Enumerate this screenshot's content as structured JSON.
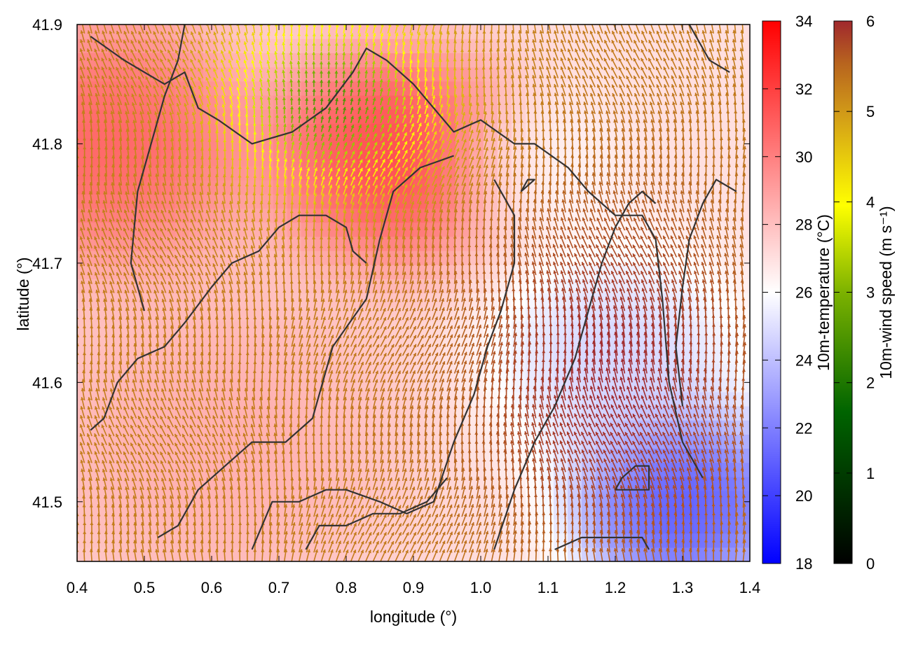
{
  "chart_data": {
    "type": "heatmap",
    "title": "",
    "xlabel": "longitude (°)",
    "ylabel": "latitude (°)",
    "xlim": [
      0.4,
      1.4
    ],
    "ylim": [
      41.45,
      41.9
    ],
    "xticks": [
      0.4,
      0.5,
      0.6,
      0.7,
      0.8,
      0.9,
      1.0,
      1.1,
      1.2,
      1.3,
      1.4
    ],
    "yticks": [
      41.5,
      41.6,
      41.7,
      41.8,
      41.9
    ],
    "xtick_labels": [
      "0.4",
      "0.5",
      "0.6",
      "0.7",
      "0.8",
      "0.9",
      "1.0",
      "1.1",
      "1.2",
      "1.3",
      "1.4"
    ],
    "ytick_labels": [
      "41.5",
      "41.6",
      "41.7",
      "41.8",
      "41.9"
    ],
    "grid": false,
    "temperature_colorbar": {
      "label": "10m-temperature (°C)",
      "range": [
        18,
        34
      ],
      "ticks": [
        18,
        20,
        22,
        24,
        26,
        28,
        30,
        32,
        34
      ],
      "tick_labels": [
        "18",
        "20",
        "22",
        "24",
        "26",
        "28",
        "30",
        "32",
        "34"
      ],
      "colors": [
        "#0000ff",
        "#ffffff",
        "#ff0000"
      ]
    },
    "wind_colorbar": {
      "label": "10m-wind speed (m s⁻¹)",
      "range": [
        0,
        6
      ],
      "ticks": [
        0,
        1,
        2,
        3,
        4,
        5,
        6
      ],
      "tick_labels": [
        "0",
        "1",
        "2",
        "3",
        "4",
        "5",
        "6"
      ],
      "colors": [
        "#000000",
        "#006400",
        "#7cb200",
        "#ffff00",
        "#d4a017",
        "#b8651e",
        "#a0282d"
      ]
    },
    "temperature_field_centers": [
      {
        "lon": 0.45,
        "lat": 41.8,
        "temp": 32,
        "spread": 0.16
      },
      {
        "lon": 0.87,
        "lat": 41.79,
        "temp": 33,
        "spread": 0.14
      },
      {
        "lon": 0.6,
        "lat": 41.55,
        "temp": 29,
        "spread": 0.22
      },
      {
        "lon": 1.3,
        "lat": 41.5,
        "temp": 19,
        "spread": 0.12
      },
      {
        "lon": 1.2,
        "lat": 41.62,
        "temp": 24,
        "spread": 0.14
      },
      {
        "lon": 1.08,
        "lat": 41.78,
        "temp": 26,
        "spread": 0.1
      }
    ],
    "temperature_background": 27,
    "wind_field": {
      "lon_step": 0.011,
      "lat_step": 0.0075,
      "calm_center": {
        "lon": 0.78,
        "lat": 41.83,
        "speed": 1.6
      },
      "strong_center": {
        "lon": 1.2,
        "lat": 41.6,
        "speed": 6.0
      },
      "background_speed": 4.6
    },
    "contours": [
      [
        [
          0.42,
          41.89
        ],
        [
          0.47,
          41.87
        ],
        [
          0.5,
          41.86
        ],
        [
          0.53,
          41.85
        ],
        [
          0.56,
          41.86
        ],
        [
          0.58,
          41.83
        ],
        [
          0.61,
          41.82
        ],
        [
          0.66,
          41.8
        ],
        [
          0.72,
          41.81
        ],
        [
          0.77,
          41.83
        ],
        [
          0.81,
          41.86
        ],
        [
          0.83,
          41.88
        ],
        [
          0.86,
          41.87
        ],
        [
          0.9,
          41.85
        ],
        [
          0.93,
          41.83
        ],
        [
          0.96,
          41.81
        ],
        [
          1.0,
          41.82
        ],
        [
          1.05,
          41.8
        ],
        [
          1.08,
          41.8
        ],
        [
          1.13,
          41.78
        ],
        [
          1.16,
          41.76
        ],
        [
          1.2,
          41.74
        ],
        [
          1.24,
          41.74
        ],
        [
          1.26,
          41.72
        ],
        [
          1.27,
          41.67
        ],
        [
          1.28,
          41.6
        ],
        [
          1.3,
          41.55
        ],
        [
          1.33,
          41.52
        ]
      ],
      [
        [
          0.52,
          41.47
        ],
        [
          0.55,
          41.48
        ],
        [
          0.58,
          41.51
        ],
        [
          0.62,
          41.53
        ],
        [
          0.66,
          41.55
        ],
        [
          0.71,
          41.55
        ],
        [
          0.75,
          41.57
        ],
        [
          0.78,
          41.63
        ],
        [
          0.83,
          41.67
        ],
        [
          0.85,
          41.72
        ],
        [
          0.87,
          41.76
        ],
        [
          0.91,
          41.78
        ],
        [
          0.96,
          41.79
        ]
      ],
      [
        [
          0.42,
          41.56
        ],
        [
          0.44,
          41.57
        ],
        [
          0.46,
          41.6
        ],
        [
          0.49,
          41.62
        ],
        [
          0.53,
          41.63
        ],
        [
          0.56,
          41.65
        ],
        [
          0.6,
          41.68
        ],
        [
          0.63,
          41.7
        ],
        [
          0.67,
          41.71
        ],
        [
          0.7,
          41.73
        ],
        [
          0.73,
          41.74
        ],
        [
          0.77,
          41.74
        ],
        [
          0.8,
          41.73
        ],
        [
          0.81,
          41.71
        ],
        [
          0.83,
          41.7
        ]
      ],
      [
        [
          0.66,
          41.46
        ],
        [
          0.69,
          41.5
        ],
        [
          0.73,
          41.5
        ],
        [
          0.77,
          41.51
        ],
        [
          0.8,
          41.51
        ],
        [
          0.85,
          41.5
        ],
        [
          0.89,
          41.49
        ],
        [
          0.93,
          41.5
        ],
        [
          0.96,
          41.55
        ],
        [
          0.99,
          41.59
        ],
        [
          1.01,
          41.63
        ],
        [
          1.03,
          41.66
        ],
        [
          1.05,
          41.7
        ],
        [
          1.05,
          41.74
        ],
        [
          1.02,
          41.77
        ]
      ],
      [
        [
          1.02,
          41.46
        ],
        [
          1.05,
          41.51
        ],
        [
          1.08,
          41.55
        ],
        [
          1.11,
          41.58
        ],
        [
          1.14,
          41.62
        ],
        [
          1.16,
          41.66
        ],
        [
          1.18,
          41.7
        ],
        [
          1.2,
          41.73
        ],
        [
          1.22,
          41.75
        ],
        [
          1.24,
          41.76
        ],
        [
          1.26,
          41.75
        ]
      ],
      [
        [
          0.5,
          41.66
        ],
        [
          0.48,
          41.7
        ],
        [
          0.49,
          41.76
        ],
        [
          0.51,
          41.8
        ],
        [
          0.53,
          41.84
        ],
        [
          0.55,
          41.87
        ],
        [
          0.56,
          41.9
        ]
      ],
      [
        [
          0.74,
          41.46
        ],
        [
          0.76,
          41.48
        ],
        [
          0.8,
          41.48
        ],
        [
          0.84,
          41.49
        ],
        [
          0.88,
          41.49
        ],
        [
          0.92,
          41.5
        ],
        [
          0.95,
          41.52
        ]
      ],
      [
        [
          1.11,
          41.46
        ],
        [
          1.15,
          41.47
        ],
        [
          1.2,
          41.47
        ],
        [
          1.24,
          41.47
        ],
        [
          1.25,
          41.46
        ]
      ],
      [
        [
          1.2,
          41.51
        ],
        [
          1.23,
          41.51
        ],
        [
          1.25,
          41.51
        ],
        [
          1.25,
          41.53
        ],
        [
          1.23,
          41.53
        ],
        [
          1.21,
          41.52
        ],
        [
          1.2,
          41.51
        ]
      ],
      [
        [
          1.38,
          41.76
        ],
        [
          1.35,
          41.77
        ],
        [
          1.33,
          41.75
        ],
        [
          1.31,
          41.72
        ],
        [
          1.3,
          41.68
        ],
        [
          1.29,
          41.63
        ],
        [
          1.3,
          41.58
        ]
      ],
      [
        [
          1.06,
          41.76
        ],
        [
          1.07,
          41.77
        ],
        [
          1.08,
          41.77
        ],
        [
          1.06,
          41.76
        ]
      ],
      [
        [
          1.37,
          41.86
        ],
        [
          1.34,
          41.87
        ],
        [
          1.32,
          41.89
        ],
        [
          1.31,
          41.9
        ]
      ]
    ]
  }
}
